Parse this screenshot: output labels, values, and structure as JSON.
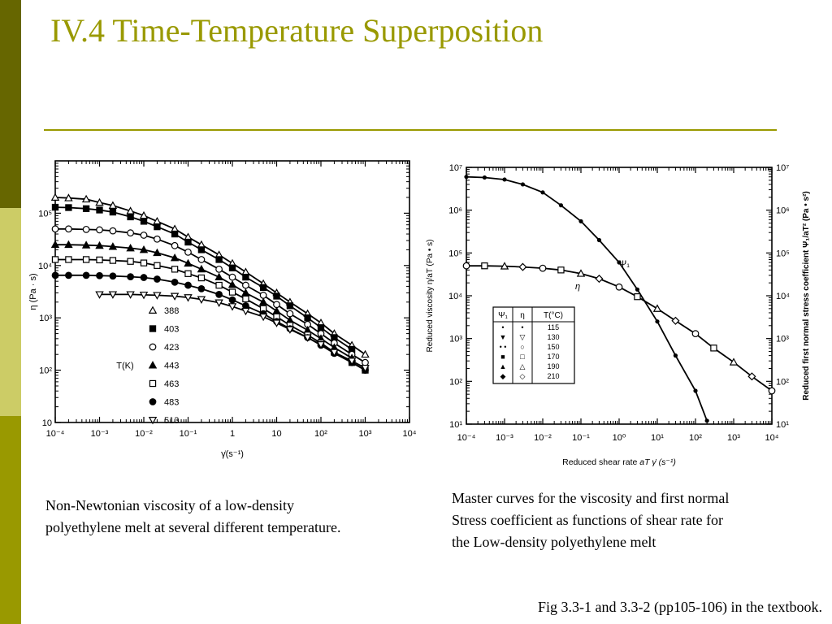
{
  "slide": {
    "title": "IV.4 Time-Temperature Superposition",
    "theme": {
      "sidebar_dark": "#666600",
      "sidebar_light": "#cccc66",
      "sidebar_mid": "#999900",
      "rule": "#999900",
      "title": "#999900"
    }
  },
  "chart_data": [
    {
      "type": "line",
      "xlabel": "γ̇(s⁻¹)",
      "ylabel": "η (Pa · s)",
      "x_scale": "log",
      "y_scale": "log",
      "xlim": [
        0.0001,
        10000
      ],
      "ylim": [
        10,
        1000000
      ],
      "x_ticks": [
        "10⁻⁴",
        "10⁻³",
        "10⁻²",
        "10⁻¹",
        "1",
        "10",
        "10²",
        "10³",
        "10⁴"
      ],
      "y_ticks": [
        "10",
        "10²",
        "10³",
        "10⁴",
        "10⁵"
      ],
      "legend_title": "T(K)",
      "legend_placement": "center-left",
      "series": [
        {
          "name": "388",
          "marker": "triangle-open",
          "eta0": 200000,
          "x": [
            0.0001,
            0.0002,
            0.0005,
            0.001,
            0.002,
            0.005,
            0.01,
            0.02,
            0.05,
            0.1,
            0.2,
            0.5,
            1,
            2,
            5,
            10,
            20,
            50,
            100,
            200,
            500,
            1000
          ],
          "y": [
            200000,
            195000,
            185000,
            160000,
            140000,
            110000,
            90000,
            70000,
            50000,
            35000,
            25000,
            16000,
            11000,
            7500,
            4500,
            3000,
            2000,
            1200,
            800,
            500,
            300,
            200
          ]
        },
        {
          "name": "403",
          "marker": "square-filled",
          "eta0": 130000,
          "x": [
            0.0001,
            0.0002,
            0.0005,
            0.001,
            0.002,
            0.005,
            0.01,
            0.02,
            0.05,
            0.1,
            0.2,
            0.5,
            1,
            2,
            5,
            10,
            20,
            50,
            100,
            200,
            500
          ],
          "y": [
            130000,
            128000,
            122000,
            115000,
            105000,
            85000,
            70000,
            55000,
            40000,
            28000,
            20000,
            13000,
            9000,
            6000,
            3800,
            2600,
            1700,
            1000,
            650,
            420,
            250
          ]
        },
        {
          "name": "423",
          "marker": "circle-open",
          "eta0": 50000,
          "x": [
            0.0001,
            0.0002,
            0.0005,
            0.001,
            0.002,
            0.005,
            0.01,
            0.02,
            0.05,
            0.1,
            0.2,
            0.5,
            1,
            2,
            5,
            10,
            20,
            50,
            100,
            200,
            500,
            1000
          ],
          "y": [
            50000,
            50000,
            49000,
            48000,
            46000,
            42000,
            38000,
            32000,
            24000,
            18000,
            13000,
            8500,
            6000,
            4200,
            2700,
            1800,
            1200,
            750,
            500,
            330,
            200,
            140
          ]
        },
        {
          "name": "443",
          "marker": "triangle-filled",
          "eta0": 25000,
          "x": [
            0.0001,
            0.0002,
            0.0005,
            0.001,
            0.002,
            0.005,
            0.01,
            0.02,
            0.05,
            0.1,
            0.2,
            0.5,
            1,
            2,
            5,
            10,
            20,
            50,
            100,
            200,
            500
          ],
          "y": [
            25000,
            25000,
            24500,
            24000,
            23000,
            21500,
            20000,
            17500,
            14000,
            11000,
            8500,
            6000,
            4300,
            3000,
            2000,
            1350,
            900,
            580,
            400,
            270,
            170
          ]
        },
        {
          "name": "463",
          "marker": "square-open",
          "eta0": 13000,
          "x": [
            0.0001,
            0.0002,
            0.0005,
            0.001,
            0.002,
            0.005,
            0.01,
            0.02,
            0.05,
            0.1,
            0.2,
            0.5,
            1,
            2,
            5,
            10,
            20,
            50,
            100,
            200,
            500,
            1000
          ],
          "y": [
            13000,
            13000,
            13000,
            12800,
            12500,
            12000,
            11200,
            10000,
            8500,
            7000,
            5800,
            4200,
            3100,
            2300,
            1500,
            1050,
            720,
            470,
            330,
            220,
            140,
            100
          ]
        },
        {
          "name": "483",
          "marker": "circle-filled",
          "eta0": 6500,
          "x": [
            0.0001,
            0.0002,
            0.0005,
            0.001,
            0.002,
            0.005,
            0.01,
            0.02,
            0.05,
            0.1,
            0.2,
            0.5,
            1,
            2,
            5,
            10,
            20,
            50,
            100,
            200,
            500,
            1000
          ],
          "y": [
            6500,
            6500,
            6500,
            6400,
            6300,
            6100,
            5900,
            5500,
            4800,
            4200,
            3600,
            2800,
            2200,
            1700,
            1200,
            850,
            620,
            420,
            300,
            210,
            140,
            100
          ]
        },
        {
          "name": "513",
          "marker": "triangle-down-open",
          "eta0": 2800,
          "x": [
            0.001,
            0.002,
            0.005,
            0.01,
            0.02,
            0.05,
            0.1,
            0.2,
            0.5,
            1,
            2,
            5,
            10,
            20,
            50,
            100,
            200,
            500,
            1000
          ],
          "y": [
            2800,
            2800,
            2800,
            2750,
            2700,
            2600,
            2450,
            2250,
            1950,
            1650,
            1350,
            1050,
            800,
            600,
            420,
            310,
            220,
            150,
            110
          ]
        }
      ]
    },
    {
      "type": "line",
      "xlabel": "Reduced shear rate",
      "xlabel_math": "aT γ̇ (s⁻¹)",
      "ylabel": "Reduced viscosity η/aT (Pa • s)",
      "y2label": "Reduced first normal stress coefficient Ψ₁/aT² (Pa • s²)",
      "x_scale": "log",
      "y_scale": "log",
      "xlim": [
        0.0001,
        10000
      ],
      "ylim": [
        10,
        10000000
      ],
      "x_ticks": [
        "10⁻⁴",
        "10⁻³",
        "10⁻²",
        "10⁻¹",
        "10⁰",
        "10¹",
        "10²",
        "10³",
        "10⁴"
      ],
      "y_ticks": [
        "10¹",
        "10²",
        "10³",
        "10⁴",
        "10⁵",
        "10⁶",
        "10⁷"
      ],
      "curve_labels": [
        "Ψ₁",
        "η"
      ],
      "legend_headers": [
        "Ψ₁",
        "η",
        "T(°C)"
      ],
      "legend_rows": [
        {
          "psi": "•",
          "eta": "•",
          "temp": "115"
        },
        {
          "psi": "▼",
          "eta": "▽",
          "temp": "130"
        },
        {
          "psi": "• •",
          "eta": "○",
          "temp": "150"
        },
        {
          "psi": "■",
          "eta": "□",
          "temp": "170"
        },
        {
          "psi": "▲",
          "eta": "△",
          "temp": "190"
        },
        {
          "psi": "◆",
          "eta": "◇",
          "temp": "210"
        }
      ],
      "legend_placement": "center-left",
      "series": [
        {
          "name": "Ψ₁",
          "x": [
            0.0001,
            0.0003,
            0.001,
            0.003,
            0.01,
            0.03,
            0.1,
            0.3,
            1,
            3,
            10,
            30,
            100,
            200
          ],
          "y": [
            6000000,
            5800000,
            5200000,
            4000000,
            2600000,
            1300000,
            550000,
            200000,
            60000,
            14000,
            2500,
            400,
            60,
            12
          ]
        },
        {
          "name": "η",
          "x": [
            0.0001,
            0.0003,
            0.001,
            0.003,
            0.01,
            0.03,
            0.1,
            0.3,
            1,
            3,
            10,
            30,
            100,
            300,
            1000,
            3000,
            10000
          ],
          "y": [
            50000,
            50000,
            49000,
            47000,
            44000,
            40000,
            33000,
            25000,
            16000,
            9500,
            5000,
            2600,
            1300,
            600,
            280,
            130,
            60
          ]
        }
      ]
    }
  ],
  "captions": {
    "left": [
      "Non-Newtonian viscosity of a low-density",
      "polyethylene melt at several different temperature."
    ],
    "right": [
      "Master curves for the viscosity and first normal",
      "Stress coefficient as functions of shear rate for",
      "the Low-density polyethylene melt"
    ],
    "footnote": "Fig 3.3-1 and 3.3-2 (pp105-106) in the textbook."
  }
}
